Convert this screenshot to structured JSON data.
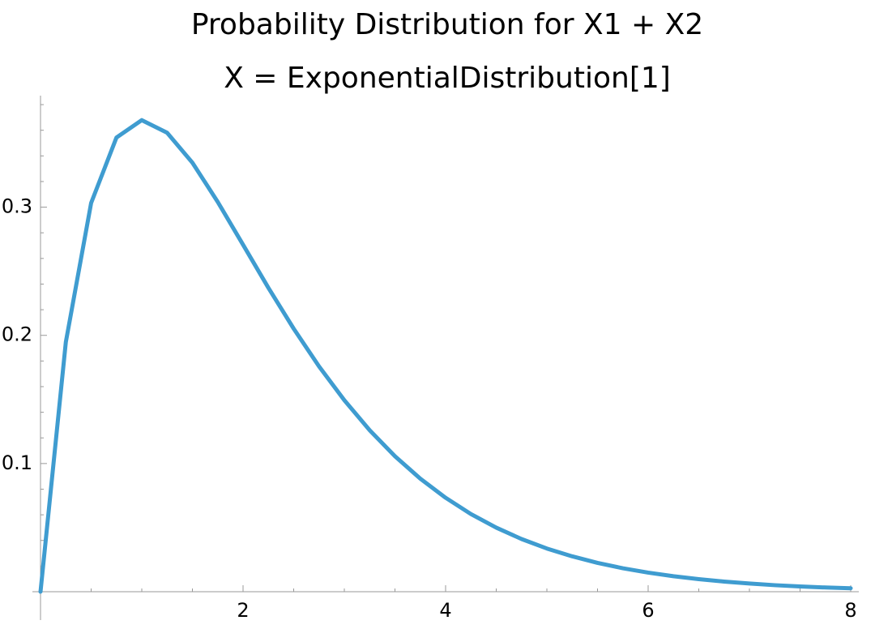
{
  "chart_data": {
    "type": "line",
    "title": "Probability Distribution for X1 + X2",
    "subtitle": "X = ExponentialDistribution[1]",
    "x": [
      0,
      0.25,
      0.5,
      0.75,
      1,
      1.25,
      1.5,
      1.75,
      2,
      2.25,
      2.5,
      2.75,
      3,
      3.25,
      3.5,
      3.75,
      4,
      4.25,
      4.5,
      4.75,
      5,
      5.25,
      5.5,
      5.75,
      6,
      6.25,
      6.5,
      6.75,
      7,
      7.25,
      7.5,
      7.75,
      8
    ],
    "series": [
      {
        "color": "#3f9cd0",
        "values": [
          0,
          0.1947,
          0.3033,
          0.3543,
          0.3679,
          0.3581,
          0.3347,
          0.3041,
          0.2707,
          0.2371,
          0.2052,
          0.1758,
          0.1494,
          0.126,
          0.1057,
          0.0882,
          0.0733,
          0.0606,
          0.05,
          0.0411,
          0.0337,
          0.0276,
          0.0225,
          0.0183,
          0.0149,
          0.0121,
          0.0098,
          0.0079,
          0.0064,
          0.0051,
          0.0041,
          0.0033,
          0.0027
        ]
      }
    ],
    "xlim": [
      0,
      8.08
    ],
    "ylim": [
      0,
      0.387
    ],
    "xticks": [
      2,
      4,
      6,
      8
    ],
    "yticks": [
      0.1,
      0.2,
      0.3
    ],
    "xminorticks": [
      0.5,
      1,
      1.5,
      2.5,
      3,
      3.5,
      4.5,
      5,
      5.5,
      6.5,
      7,
      7.5
    ],
    "yminorticks": [
      0.02,
      0.04,
      0.06,
      0.08,
      0.12,
      0.14,
      0.16,
      0.18,
      0.22,
      0.24,
      0.26,
      0.28,
      0.32,
      0.34,
      0.36,
      0.38
    ]
  }
}
